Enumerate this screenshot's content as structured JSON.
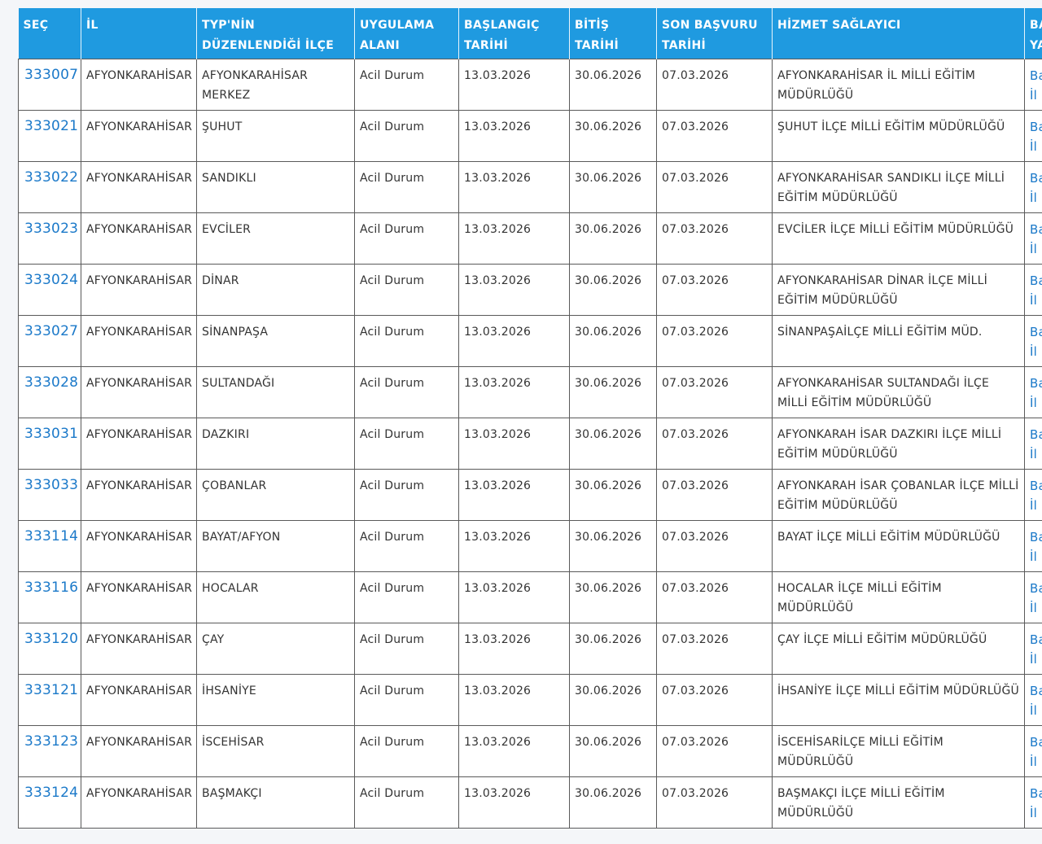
{
  "table": {
    "header": [
      "SEÇ",
      "İL",
      "TYP'NİN DÜZENLENDİĞİ İLÇE",
      "UYGULAMA ALANI",
      "BAŞLANGIÇ TARİHİ",
      "BİTİŞ TARİHİ",
      "SON BAŞVURU TARİHİ",
      "HİZMET SAĞLAYICI",
      "BA YA"
    ],
    "rows": [
      [
        "333007",
        "AFYONKARAHİSAR",
        "AFYONKARAHİSAR MERKEZ",
        "Acil Durum",
        "13.03.2026",
        "30.06.2026",
        "07.03.2026",
        "AFYONKARAHİSAR İL MİLLİ EĞİTİM MÜDÜRLÜĞÜ",
        "Ba İl"
      ],
      [
        "333021",
        "AFYONKARAHİSAR",
        "ŞUHUT",
        "Acil Durum",
        "13.03.2026",
        "30.06.2026",
        "07.03.2026",
        "ŞUHUT İLÇE MİLLİ EĞİTİM MÜDÜRLÜĞÜ",
        "Ba İl"
      ],
      [
        "333022",
        "AFYONKARAHİSAR",
        "SANDIKLI",
        "Acil Durum",
        "13.03.2026",
        "30.06.2026",
        "07.03.2026",
        "AFYONKARAHİSAR SANDIKLI İLÇE MİLLİ EĞİTİM MÜDÜRLÜĞÜ",
        "Ba İl"
      ],
      [
        "333023",
        "AFYONKARAHİSAR",
        "EVCİLER",
        "Acil Durum",
        "13.03.2026",
        "30.06.2026",
        "07.03.2026",
        "EVCİLER İLÇE MİLLİ EĞİTİM MÜDÜRLÜĞÜ",
        "Ba İl"
      ],
      [
        "333024",
        "AFYONKARAHİSAR",
        "DİNAR",
        "Acil Durum",
        "13.03.2026",
        "30.06.2026",
        "07.03.2026",
        "AFYONKARAHİSAR DİNAR İLÇE MİLLİ EĞİTİM MÜDÜRLÜĞÜ",
        "Ba İl"
      ],
      [
        "333027",
        "AFYONKARAHİSAR",
        "SİNANPAŞA",
        "Acil Durum",
        "13.03.2026",
        "30.06.2026",
        "07.03.2026",
        "SİNANPAŞAİLÇE MİLLİ EĞİTİM MÜD.",
        "Ba İl"
      ],
      [
        "333028",
        "AFYONKARAHİSAR",
        "SULTANDAĞI",
        "Acil Durum",
        "13.03.2026",
        "30.06.2026",
        "07.03.2026",
        "AFYONKARAHİSAR SULTANDAĞI İLÇE MİLLİ EĞİTİM MÜDÜRLÜĞÜ",
        "Ba İl"
      ],
      [
        "333031",
        "AFYONKARAHİSAR",
        "DAZKIRI",
        "Acil Durum",
        "13.03.2026",
        "30.06.2026",
        "07.03.2026",
        "AFYONKARAH İSAR DAZKIRI İLÇE MİLLİ EĞİTİM MÜDÜRLÜĞÜ",
        "Ba İl"
      ],
      [
        "333033",
        "AFYONKARAHİSAR",
        "ÇOBANLAR",
        "Acil Durum",
        "13.03.2026",
        "30.06.2026",
        "07.03.2026",
        "AFYONKARAH İSAR ÇOBANLAR İLÇE MİLLİ EĞİTİM MÜDÜRLÜĞÜ",
        "Ba İl"
      ],
      [
        "333114",
        "AFYONKARAHİSAR",
        "BAYAT/AFYON",
        "Acil Durum",
        "13.03.2026",
        "30.06.2026",
        "07.03.2026",
        "BAYAT İLÇE MİLLİ EĞİTİM MÜDÜRLÜĞÜ",
        "Ba İl"
      ],
      [
        "333116",
        "AFYONKARAHİSAR",
        "HOCALAR",
        "Acil Durum",
        "13.03.2026",
        "30.06.2026",
        "07.03.2026",
        "HOCALAR İLÇE MİLLİ EĞİTİM MÜDÜRLÜĞÜ",
        "Ba İl"
      ],
      [
        "333120",
        "AFYONKARAHİSAR",
        "ÇAY",
        "Acil Durum",
        "13.03.2026",
        "30.06.2026",
        "07.03.2026",
        "ÇAY İLÇE MİLLİ EĞİTİM MÜDÜRLÜĞÜ",
        "Ba İl"
      ],
      [
        "333121",
        "AFYONKARAHİSAR",
        "İHSANİYE",
        "Acil Durum",
        "13.03.2026",
        "30.06.2026",
        "07.03.2026",
        "İHSANİYE İLÇE MİLLİ EĞİTİM MÜDÜRLÜĞÜ",
        "Ba İl"
      ],
      [
        "333123",
        "AFYONKARAHİSAR",
        "İSCEHİSAR",
        "Acil Durum",
        "13.03.2026",
        "30.06.2026",
        "07.03.2026",
        "İSCEHİSARİLÇE MİLLİ EĞİTİM MÜDÜRLÜĞÜ",
        "Ba İl"
      ],
      [
        "333124",
        "AFYONKARAHİSAR",
        "BAŞMAKÇI",
        "Acil Durum",
        "13.03.2026",
        "30.06.2026",
        "07.03.2026",
        "BAŞMAKÇI İLÇE MİLLİ EĞİTİM MÜDÜRLÜĞÜ",
        "Ba İl"
      ]
    ]
  }
}
